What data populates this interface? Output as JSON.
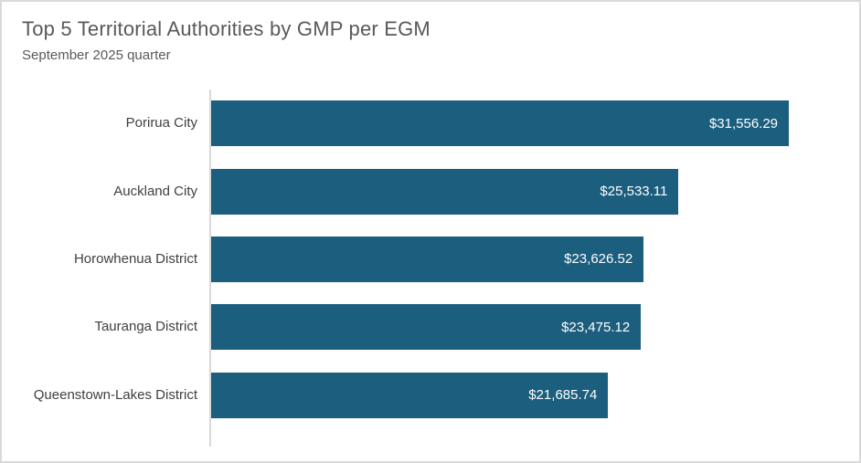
{
  "panel": {
    "background": "#ffffff",
    "border_color": "#d9d9d9"
  },
  "chart_data": {
    "type": "bar",
    "orientation": "horizontal",
    "title": "Top 5 Territorial Authorities by GMP per EGM",
    "subtitle": "September 2025 quarter",
    "categories": [
      "Porirua City",
      "Auckland City",
      "Horowhenua District",
      "Tauranga District",
      "Queenstown-Lakes District"
    ],
    "values": [
      31556.29,
      25533.11,
      23626.52,
      23475.12,
      21685.74
    ],
    "value_labels": [
      "$31,556.29",
      "$25,533.11",
      "$23,626.52",
      "$23,475.12",
      "$21,685.74"
    ],
    "xlim": [
      0,
      35000
    ],
    "grid": false,
    "legend": "none",
    "colors": {
      "bar": "#1b5e7e",
      "value_label": "#ffffff",
      "category_label": "#404040",
      "title": "#595959",
      "subtitle": "#595959",
      "axis_line": "#d9d9d9"
    }
  }
}
